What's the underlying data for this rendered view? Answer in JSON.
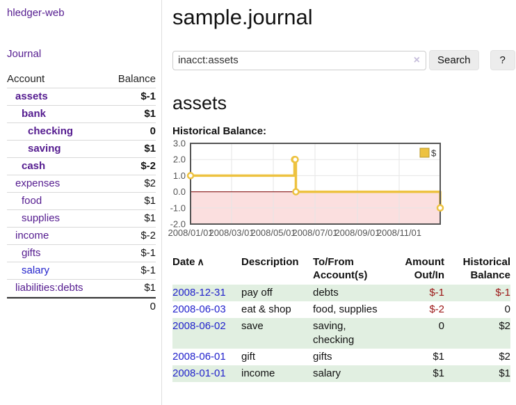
{
  "app": {
    "brand": "hledger-web",
    "nav": {
      "journal": "Journal"
    }
  },
  "sidebar": {
    "columns": {
      "account": "Account",
      "balance": "Balance"
    },
    "accounts": [
      {
        "name": "assets",
        "balance": "$-1"
      },
      {
        "name": "bank",
        "balance": "$1"
      },
      {
        "name": "checking",
        "balance": "0"
      },
      {
        "name": "saving",
        "balance": "$1"
      },
      {
        "name": "cash",
        "balance": "$-2"
      },
      {
        "name": "expenses",
        "balance": "$2"
      },
      {
        "name": "food",
        "balance": "$1"
      },
      {
        "name": "supplies",
        "balance": "$1"
      },
      {
        "name": "income",
        "balance": "$-2"
      },
      {
        "name": "gifts",
        "balance": "$-1"
      },
      {
        "name": "salary",
        "balance": "$-1"
      },
      {
        "name": "liabilities:debts",
        "balance": "$1"
      }
    ],
    "total_balance": "0"
  },
  "header": {
    "title": "sample.journal"
  },
  "search": {
    "value": "inacct:assets",
    "clear_icon": "×",
    "search_button": "Search",
    "help_button": "?"
  },
  "account_page": {
    "heading": "assets",
    "chart_title": "Historical Balance:"
  },
  "chart_data": {
    "type": "line",
    "step": true,
    "title": "Historical Balance:",
    "series": [
      {
        "name": "$",
        "color": "#edc240",
        "points": [
          {
            "date": "2008/01/01",
            "day": 0,
            "value": 1.0
          },
          {
            "date": "2008/06/01",
            "day": 152,
            "value": 2.0
          },
          {
            "date": "2008/06/02",
            "day": 153,
            "value": 2.0
          },
          {
            "date": "2008/06/03",
            "day": 154,
            "value": 0.0
          },
          {
            "date": "2008/12/31",
            "day": 365,
            "value": -1.0
          }
        ]
      }
    ],
    "x_ticks": [
      {
        "day": 0,
        "label": "2008/01/01"
      },
      {
        "day": 60,
        "label": "2008/03/01"
      },
      {
        "day": 121,
        "label": "2008/05/01"
      },
      {
        "day": 182,
        "label": "2008/07/01"
      },
      {
        "day": 244,
        "label": "2008/09/01"
      },
      {
        "day": 305,
        "label": "2008/11/01"
      }
    ],
    "y_ticks": [
      3.0,
      2.0,
      1.0,
      0.0,
      -1.0,
      -2.0
    ],
    "xlim_days": [
      0,
      365
    ],
    "ylim": [
      -2.0,
      3.0
    ],
    "grid": true,
    "legend": {
      "label": "$",
      "position": "top-right"
    },
    "colors": {
      "line": "#edc240",
      "zero_line": "#7a0000",
      "negative_region_fill": "#fbdfdf",
      "gridline": "#e6e6e6",
      "border": "#545454",
      "axis_text": "#545454"
    }
  },
  "register": {
    "columns": {
      "date": "Date",
      "sort_icon": "∧",
      "description": "Description",
      "account": "To/From Account(s)",
      "amount": "Amount Out/In",
      "balance": "Historical Balance"
    },
    "rows": [
      {
        "date": "2008-12-31",
        "description": "pay off",
        "accounts": "debts",
        "amount": "$-1",
        "balance": "$-1"
      },
      {
        "date": "2008-06-03",
        "description": "eat & shop",
        "accounts": "food, supplies",
        "amount": "$-2",
        "balance": "0"
      },
      {
        "date": "2008-06-02",
        "description": "save",
        "accounts": "saving, checking",
        "amount": "0",
        "balance": "$2"
      },
      {
        "date": "2008-06-01",
        "description": "gift",
        "accounts": "gifts",
        "amount": "$1",
        "balance": "$2"
      },
      {
        "date": "2008-01-01",
        "description": "income",
        "accounts": "salary",
        "amount": "$1",
        "balance": "$1"
      }
    ]
  }
}
